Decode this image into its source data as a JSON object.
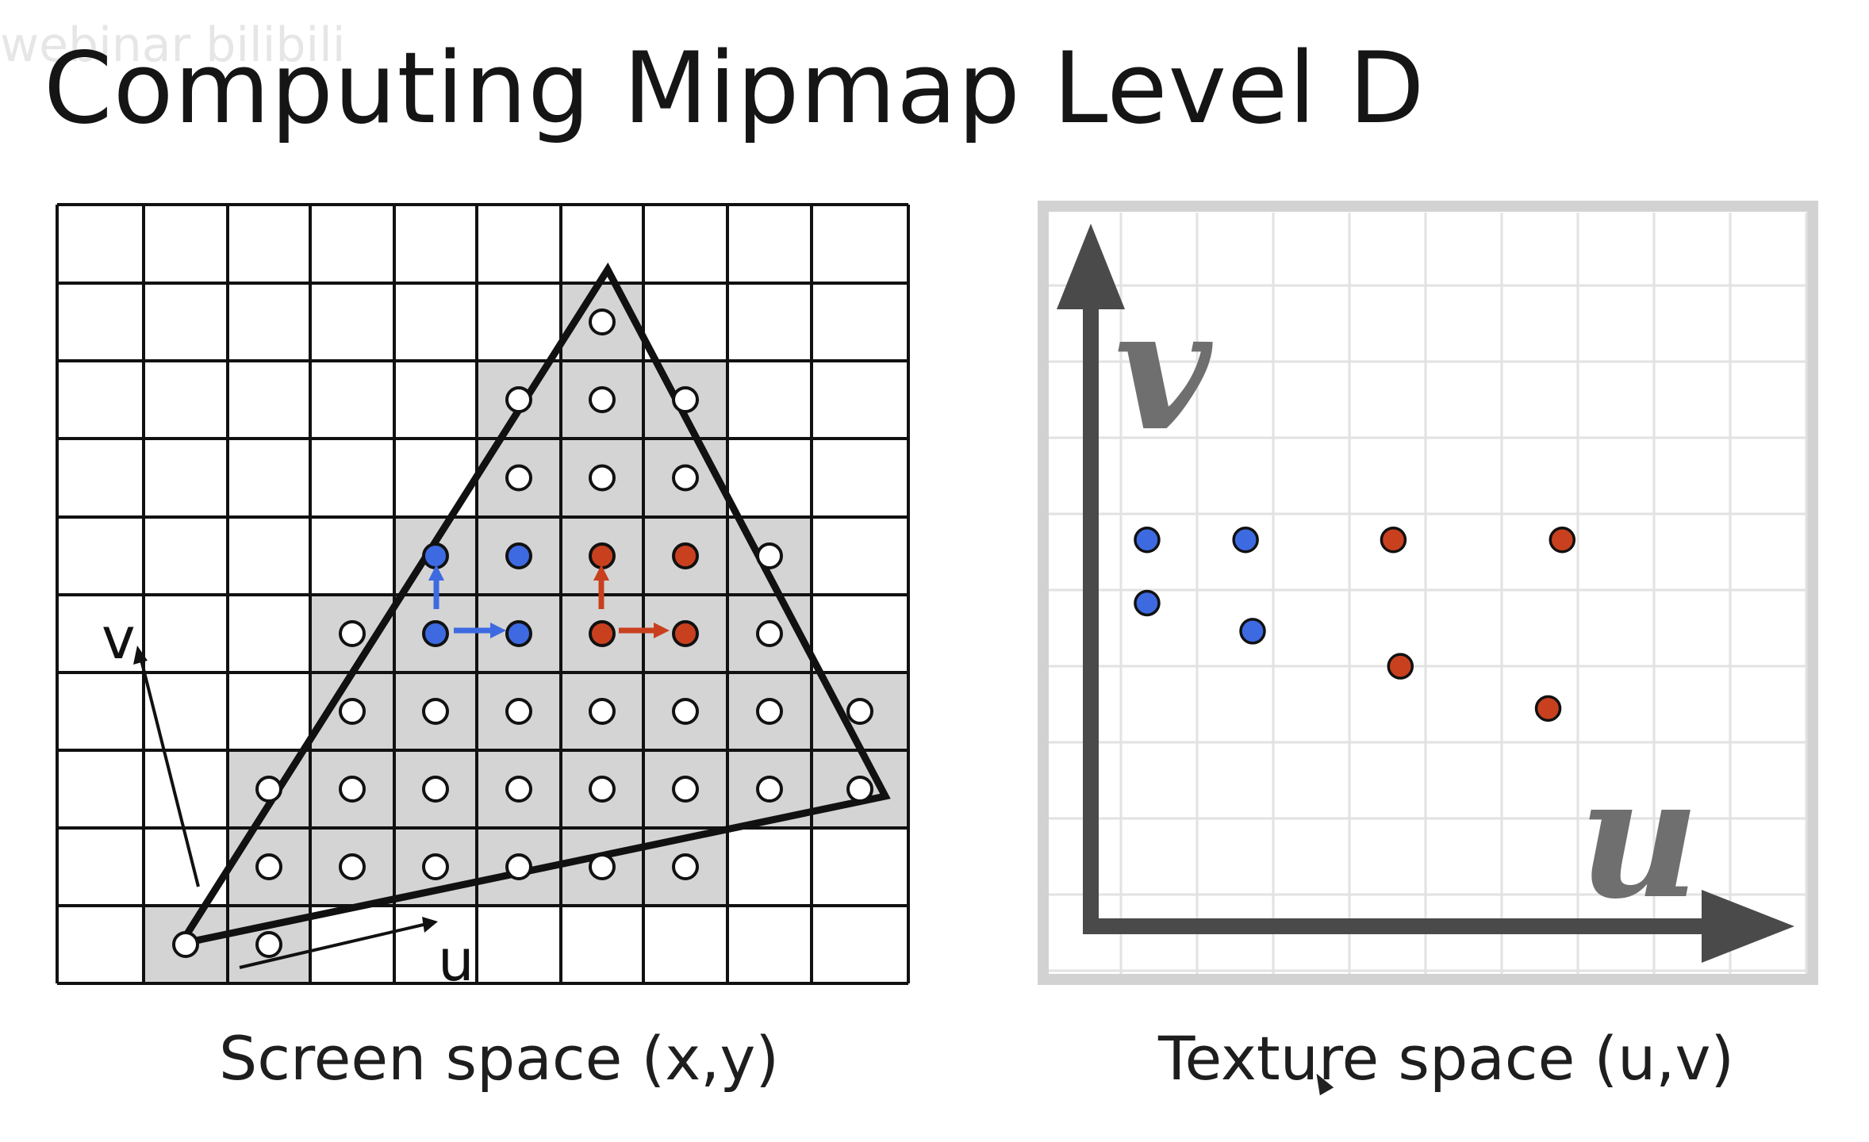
{
  "watermark": "webinar bilibili",
  "title": "Computing Mipmap Level D",
  "screen_panel": {
    "caption": "Screen space (x,y)",
    "u_label": "u",
    "v_label": "v"
  },
  "texture_panel": {
    "caption": "Texture space (u,v)",
    "u_label": "u",
    "v_label": "v",
    "blue_points": [
      [
        0.08,
        0.55
      ],
      [
        0.22,
        0.55
      ],
      [
        0.08,
        0.46
      ],
      [
        0.23,
        0.42
      ]
    ],
    "red_points": [
      [
        0.43,
        0.55
      ],
      [
        0.67,
        0.55
      ],
      [
        0.44,
        0.37
      ],
      [
        0.65,
        0.31
      ]
    ]
  },
  "colors": {
    "blue": "#3d6ae0",
    "red": "#c9401f",
    "cover": "#d4d4d4"
  }
}
